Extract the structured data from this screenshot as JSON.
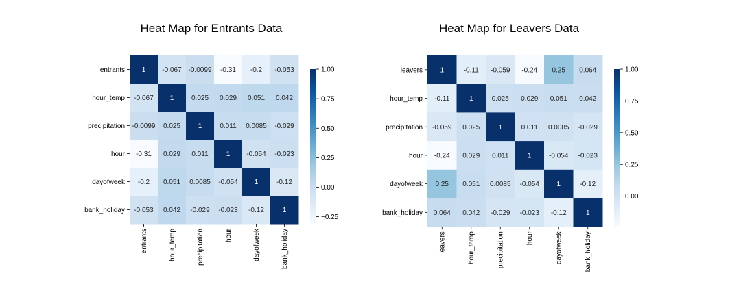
{
  "chart_data": [
    {
      "type": "heatmap",
      "title": "Heat Map for Entrants Data",
      "rows": [
        "entrants",
        "hour_temp",
        "precipitation",
        "hour",
        "dayofweek",
        "bank_holiday"
      ],
      "columns": [
        "entrants",
        "hour_temp",
        "precipitation",
        "hour",
        "dayofweek",
        "bank_holiday"
      ],
      "values": [
        [
          1,
          -0.067,
          -0.0099,
          -0.31,
          -0.2,
          -0.053
        ],
        [
          -0.067,
          1,
          0.025,
          0.029,
          0.051,
          0.042
        ],
        [
          -0.0099,
          0.025,
          1,
          0.011,
          0.0085,
          -0.029
        ],
        [
          -0.31,
          0.029,
          0.011,
          1,
          -0.054,
          -0.023
        ],
        [
          -0.2,
          0.051,
          0.0085,
          -0.054,
          1,
          -0.12
        ],
        [
          -0.053,
          0.042,
          -0.029,
          -0.023,
          -0.12,
          1
        ]
      ],
      "labels": [
        [
          "1",
          "-0.067",
          "-0.0099",
          "-0.31",
          "-0.2",
          "-0.053"
        ],
        [
          "-0.067",
          "1",
          "0.025",
          "0.029",
          "0.051",
          "0.042"
        ],
        [
          "-0.0099",
          "0.025",
          "1",
          "0.011",
          "0.0085",
          "-0.029"
        ],
        [
          "-0.31",
          "0.029",
          "0.011",
          "1",
          "-0.054",
          "-0.023"
        ],
        [
          "-0.2",
          "0.051",
          "0.0085",
          "-0.054",
          "1",
          "-0.12"
        ],
        [
          "-0.053",
          "0.042",
          "-0.029",
          "-0.023",
          "-0.12",
          "1"
        ]
      ],
      "colorbar": {
        "vmin": -0.31,
        "vmax": 1,
        "ticks": [
          1.0,
          0.75,
          0.5,
          0.25,
          0.0,
          -0.25
        ],
        "tick_labels": [
          "1.00",
          "0.75",
          "0.50",
          "0.25",
          "0.00",
          "−0.25"
        ]
      },
      "colormap": "Blues"
    },
    {
      "type": "heatmap",
      "title": "Heat Map for Leavers Data",
      "rows": [
        "leavers",
        "hour_temp",
        "precipitation",
        "hour",
        "dayofweek",
        "bank_holiday"
      ],
      "columns": [
        "leavers",
        "hour_temp",
        "precipitation",
        "hour",
        "dayofweek",
        "bank_holiday"
      ],
      "values": [
        [
          1,
          -0.11,
          -0.059,
          -0.24,
          0.25,
          0.064
        ],
        [
          -0.11,
          1,
          0.025,
          0.029,
          0.051,
          0.042
        ],
        [
          -0.059,
          0.025,
          1,
          0.011,
          0.0085,
          -0.029
        ],
        [
          -0.24,
          0.029,
          0.011,
          1,
          -0.054,
          -0.023
        ],
        [
          0.25,
          0.051,
          0.0085,
          -0.054,
          1,
          -0.12
        ],
        [
          0.064,
          0.042,
          -0.029,
          -0.023,
          -0.12,
          1
        ]
      ],
      "labels": [
        [
          "1",
          "-0.11",
          "-0.059",
          "-0.24",
          "0.25",
          "0.064"
        ],
        [
          "-0.11",
          "1",
          "0.025",
          "0.029",
          "0.051",
          "0.042"
        ],
        [
          "-0.059",
          "0.025",
          "1",
          "0.011",
          "0.0085",
          "-0.029"
        ],
        [
          "-0.24",
          "0.029",
          "0.011",
          "1",
          "-0.054",
          "-0.023"
        ],
        [
          "0.25",
          "0.051",
          "0.0085",
          "-0.054",
          "1",
          "-0.12"
        ],
        [
          "0.064",
          "0.042",
          "-0.029",
          "-0.023",
          "-0.12",
          "1"
        ]
      ],
      "colorbar": {
        "vmin": -0.24,
        "vmax": 1,
        "ticks": [
          1.0,
          0.75,
          0.5,
          0.25,
          0.0
        ],
        "tick_labels": [
          "1.00",
          "0.75",
          "0.50",
          "0.25",
          "0.00"
        ]
      },
      "colormap": "Blues"
    }
  ]
}
